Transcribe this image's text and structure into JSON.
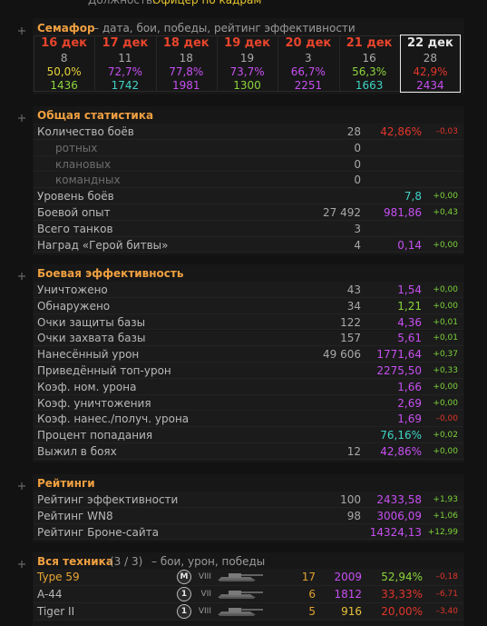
{
  "header": {
    "label": "Должность:",
    "value": "Офицер по кадрам"
  },
  "semaphore": {
    "title": "Семафор",
    "subtitle": "– дата, бои, победы, рейтинг эффективности",
    "days": [
      {
        "date": "16 дек",
        "battles": "8",
        "wins": "50,0%",
        "wins_color": "#e6d23a",
        "rating": "1436",
        "rating_color": "#8cd43c"
      },
      {
        "date": "17 дек",
        "battles": "11",
        "wins": "72,7%",
        "wins_color": "#c64ff0",
        "rating": "1742",
        "rating_color": "#3fd3c6"
      },
      {
        "date": "18 дек",
        "battles": "18",
        "wins": "77,8%",
        "wins_color": "#c64ff0",
        "rating": "1981",
        "rating_color": "#c64ff0"
      },
      {
        "date": "19 дек",
        "battles": "19",
        "wins": "73,7%",
        "wins_color": "#c64ff0",
        "rating": "1300",
        "rating_color": "#8cd43c"
      },
      {
        "date": "20 дек",
        "battles": "3",
        "wins": "66,7%",
        "wins_color": "#c64ff0",
        "rating": "2251",
        "rating_color": "#c64ff0"
      },
      {
        "date": "21 дек",
        "battles": "16",
        "wins": "56,3%",
        "wins_color": "#8cd43c",
        "rating": "1663",
        "rating_color": "#3fd3c6"
      },
      {
        "date": "22 дек",
        "battles": "28",
        "wins": "42,9%",
        "wins_color": "#e2352a",
        "rating": "2434",
        "rating_color": "#c64ff0"
      }
    ]
  },
  "sections": [
    {
      "title": "Общая статистика",
      "rows": [
        {
          "label": "Количество боёв",
          "count": "28",
          "value": "42,86%",
          "value_color": "#e2352a",
          "delta": "–0,03",
          "delta_color": "#e2352a"
        },
        {
          "label": "ротных",
          "count": "0",
          "sub": true
        },
        {
          "label": "клановых",
          "count": "0",
          "sub": true
        },
        {
          "label": "командных",
          "count": "0",
          "sub": true
        },
        {
          "label": "Уровень боёв",
          "value": "7,8",
          "value_color": "#3fd3c6",
          "delta": "+0,00",
          "delta_color": "#7cd23a"
        },
        {
          "label": "Боевой опыт",
          "count": "27 492",
          "value": "981,86",
          "value_color": "#c64ff0",
          "delta": "+0,43",
          "delta_color": "#7cd23a"
        },
        {
          "label": "Всего танков",
          "count": "3"
        },
        {
          "label": "Наград «Герой битвы»",
          "count": "4",
          "value": "0,14",
          "value_color": "#c64ff0",
          "delta": "+0,00",
          "delta_color": "#7cd23a"
        }
      ]
    },
    {
      "title": "Боевая эффективность",
      "rows": [
        {
          "label": "Уничтожено",
          "count": "43",
          "value": "1,54",
          "value_color": "#c64ff0",
          "delta": "+0,00",
          "delta_color": "#7cd23a"
        },
        {
          "label": "Обнаружено",
          "count": "34",
          "value": "1,21",
          "value_color": "#8cd43c",
          "delta": "+0,00",
          "delta_color": "#7cd23a"
        },
        {
          "label": "Очки защиты базы",
          "count": "122",
          "value": "4,36",
          "value_color": "#c64ff0",
          "delta": "+0,01",
          "delta_color": "#7cd23a"
        },
        {
          "label": "Очки захвата базы",
          "count": "157",
          "value": "5,61",
          "value_color": "#c64ff0",
          "delta": "+0,01",
          "delta_color": "#7cd23a"
        },
        {
          "label": "Нанесённый урон",
          "count": "49 606",
          "value": "1771,64",
          "value_color": "#c64ff0",
          "delta": "+0,37",
          "delta_color": "#7cd23a"
        },
        {
          "label": "Приведённый топ-урон",
          "value": "2275,50",
          "value_color": "#c64ff0",
          "delta": "+0,33",
          "delta_color": "#7cd23a"
        },
        {
          "label": "Коэф. ном. урона",
          "value": "1,66",
          "value_color": "#c64ff0",
          "delta": "+0,00",
          "delta_color": "#7cd23a"
        },
        {
          "label": "Коэф. уничтожения",
          "value": "2,69",
          "value_color": "#c64ff0",
          "delta": "+0,00",
          "delta_color": "#7cd23a"
        },
        {
          "label": "Коэф. нанес./получ. урона",
          "value": "1,69",
          "value_color": "#c64ff0",
          "delta": "–0,00",
          "delta_color": "#e2352a"
        },
        {
          "label": "Процент попадания",
          "value": "76,16%",
          "value_color": "#3fd3c6",
          "delta": "+0,02",
          "delta_color": "#7cd23a"
        },
        {
          "label": "Выжил в боях",
          "count": "12",
          "value": "42,86%",
          "value_color": "#c64ff0",
          "delta": "+0,00",
          "delta_color": "#7cd23a"
        }
      ]
    },
    {
      "title": "Рейтинги",
      "rows": [
        {
          "label": "Рейтинг эффективности",
          "count": "100",
          "value": "2433,58",
          "value_color": "#c64ff0",
          "delta": "+1,93",
          "delta_color": "#7cd23a"
        },
        {
          "label": "Рейтинг WN8",
          "count": "98",
          "value": "3006,09",
          "value_color": "#c64ff0",
          "delta": "+1,06",
          "delta_color": "#7cd23a"
        },
        {
          "label": "Рейтинг Броне-сайта",
          "value": "14324,13",
          "value_color": "#c64ff0",
          "delta": "+12,99",
          "delta_color": "#7cd23a"
        }
      ]
    }
  ],
  "vehicles": {
    "title": "Вся техника",
    "count": "(3 / 3)",
    "subtitle": "– бои, урон, победы",
    "rows": [
      {
        "name": "Type 59",
        "name_color": "#e8a634",
        "badge": "M",
        "tier": "VIII",
        "battles": "17",
        "damage": "2009",
        "damage_color": "#c64ff0",
        "winrate": "52,94%",
        "winrate_color": "#8cd43c",
        "delta": "–0,18",
        "delta_color": "#e2352a"
      },
      {
        "name": "A-44",
        "name_color": "#b8b8b8",
        "badge": "1",
        "tier": "VII",
        "battles": "6",
        "damage": "1812",
        "damage_color": "#c64ff0",
        "winrate": "33,33%",
        "winrate_color": "#e2352a",
        "delta": "–6,71",
        "delta_color": "#e2352a"
      },
      {
        "name": "Tiger II",
        "name_color": "#b8b8b8",
        "badge": "1",
        "tier": "VIII",
        "battles": "5",
        "damage": "916",
        "damage_color": "#e8c13a",
        "winrate": "20,00%",
        "winrate_color": "#e2352a",
        "delta": "–3,40",
        "delta_color": "#e2352a"
      }
    ]
  }
}
